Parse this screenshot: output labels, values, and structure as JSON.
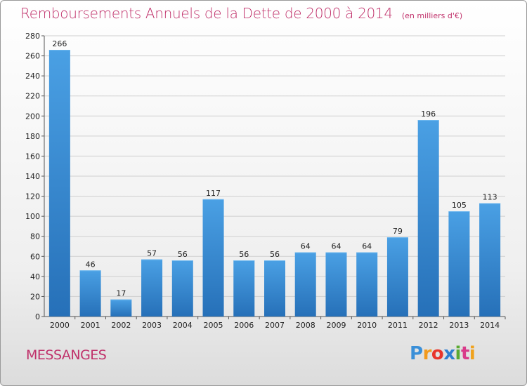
{
  "header": {
    "title": "Remboursements Annuels de la Dette de 2000 à 2014",
    "unit": "(en milliers d'€)"
  },
  "footer": {
    "commune": "MESSANGES",
    "brand": "Proxiti",
    "brand_colors": [
      "#3a8fd8",
      "#f29a1d",
      "#e8352b",
      "#2f7fd0",
      "#5aaa32",
      "#d93a8a",
      "#f0a21d"
    ]
  },
  "colors": {
    "accent": "#c0306a",
    "bar": "#3d8fd6",
    "bar_dark": "#2670b8",
    "grid": "#cfcfcf"
  },
  "chart_data": {
    "type": "bar",
    "title": "Remboursements Annuels de la Dette de 2000 à 2014",
    "subtitle": "(en milliers d'€)",
    "xlabel": "",
    "ylabel": "",
    "categories": [
      "2000",
      "2001",
      "2002",
      "2003",
      "2004",
      "2005",
      "2006",
      "2007",
      "2008",
      "2009",
      "2010",
      "2011",
      "2012",
      "2013",
      "2014"
    ],
    "values": [
      266,
      46,
      17,
      57,
      56,
      117,
      56,
      56,
      64,
      64,
      64,
      79,
      196,
      105,
      113
    ],
    "ylim": [
      0,
      280
    ],
    "yticks": [
      0,
      20,
      40,
      60,
      80,
      100,
      120,
      140,
      160,
      180,
      200,
      220,
      240,
      260,
      280
    ],
    "grid": true,
    "legend": "none"
  }
}
